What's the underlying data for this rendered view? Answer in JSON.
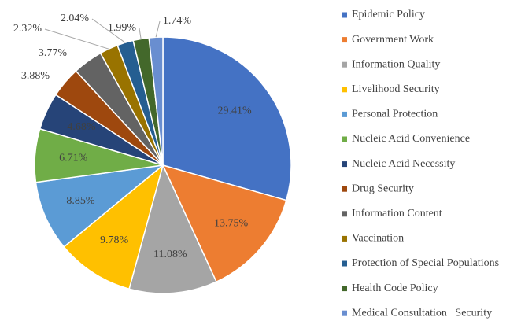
{
  "chart_data": {
    "type": "pie",
    "categories": [
      "Epidemic Policy",
      "Government Work",
      "Information Quality",
      "Livelihood Security",
      "Personal Protection",
      "Nucleic Acid Convenience",
      "Nucleic Acid Necessity",
      "Drug Security",
      "Information Content",
      "Vaccination",
      "Protection of Special Populations",
      "Health Code Policy",
      "Medical Consultation   Security"
    ],
    "values": [
      29.41,
      13.75,
      11.08,
      9.78,
      8.85,
      6.71,
      4.68,
      3.88,
      3.77,
      2.32,
      2.04,
      1.99,
      1.74
    ],
    "value_labels": [
      "29.41%",
      "13.75%",
      "11.08%",
      "9.78%",
      "8.85%",
      "6.71%",
      "4.68%",
      "3.88%",
      "3.77%",
      "2.32%",
      "2.04%",
      "1.99%",
      "1.74%"
    ],
    "colors": [
      "#4472c4",
      "#ed7d31",
      "#a5a5a5",
      "#ffc000",
      "#5b9bd5",
      "#70ad47",
      "#264478",
      "#9e480e",
      "#636363",
      "#997300",
      "#255e91",
      "#43682b",
      "#698ed0"
    ],
    "legend": "right"
  }
}
